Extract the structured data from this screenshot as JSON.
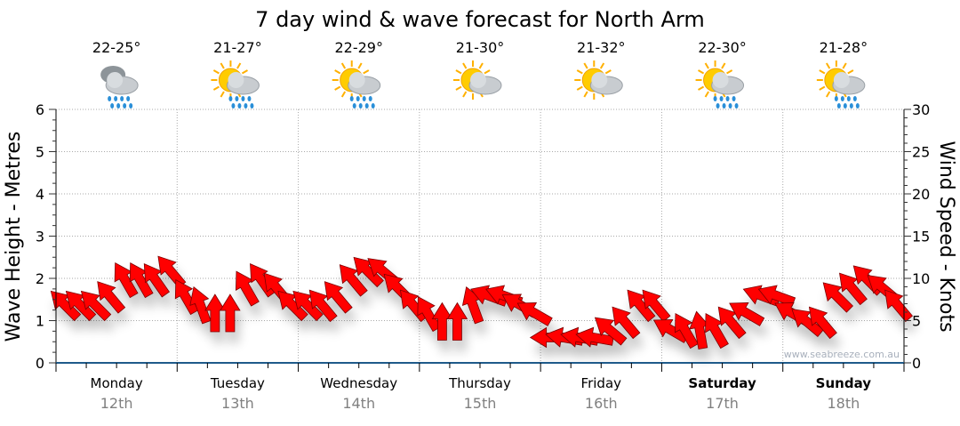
{
  "chart_data": {
    "type": "scatter",
    "title": "7 day wind & wave forecast for North Arm",
    "ylabel_left": "Wave Height - Metres",
    "ylabel_right": "Wind Speed - Knots",
    "ylim_left": [
      0,
      6
    ],
    "ylim_right": [
      0,
      30
    ],
    "yticks_left": [
      "0",
      "1",
      "2",
      "3",
      "4",
      "5",
      "6"
    ],
    "yticks_right": [
      "0",
      "5",
      "10",
      "15",
      "20",
      "25",
      "30"
    ],
    "grid": true,
    "watermark": "www.seabreeze.com.au",
    "days": [
      {
        "name": "Monday",
        "date": "12th",
        "temp": "22-25°",
        "icon": "rain-cloud-icon",
        "bold": false
      },
      {
        "name": "Tuesday",
        "date": "13th",
        "temp": "21-27°",
        "icon": "sun-cloud-rain-icon",
        "bold": false
      },
      {
        "name": "Wednesday",
        "date": "14th",
        "temp": "22-29°",
        "icon": "sun-cloud-rain-icon",
        "bold": false
      },
      {
        "name": "Thursday",
        "date": "15th",
        "temp": "21-30°",
        "icon": "sun-cloud-icon",
        "bold": false
      },
      {
        "name": "Friday",
        "date": "16th",
        "temp": "21-32°",
        "icon": "sun-cloud-icon",
        "bold": false
      },
      {
        "name": "Saturday",
        "date": "17th",
        "temp": "22-30°",
        "icon": "sun-cloud-rain-icon",
        "bold": true
      },
      {
        "name": "Sunday",
        "date": "18th",
        "temp": "21-28°",
        "icon": "sun-cloud-rain-icon",
        "bold": true
      }
    ],
    "series": [
      {
        "name": "Wind",
        "interval_hours": 3,
        "speed_knots": [
          7,
          7,
          7,
          8,
          10,
          10,
          10,
          11,
          8,
          7,
          6,
          6,
          9,
          10,
          9,
          7,
          7,
          7,
          8,
          10,
          11,
          11,
          9,
          7,
          6,
          5,
          5,
          7,
          8,
          8,
          7,
          6,
          3,
          3,
          3,
          3,
          4,
          5,
          7,
          7,
          4,
          4,
          4,
          4,
          5,
          6,
          8,
          8,
          6,
          5,
          5,
          8,
          9,
          10,
          9,
          7
        ],
        "arrow_direction_deg": [
          -45,
          -45,
          -45,
          -40,
          -30,
          -30,
          -35,
          -40,
          -30,
          -20,
          0,
          0,
          -30,
          -35,
          -40,
          -45,
          -45,
          -40,
          -40,
          -40,
          -45,
          -50,
          -45,
          -40,
          -30,
          0,
          0,
          -20,
          -70,
          -70,
          -60,
          -60,
          -90,
          -80,
          -80,
          -80,
          -50,
          -40,
          -40,
          -40,
          -60,
          -30,
          -10,
          -30,
          -40,
          -60,
          -70,
          -70,
          -60,
          -50,
          -40,
          -45,
          -40,
          -45,
          -50,
          -40
        ]
      }
    ],
    "colors": {
      "arrow": "#ff0000",
      "axis": "#1f5a8a",
      "grid": "#aaaaaa"
    }
  }
}
